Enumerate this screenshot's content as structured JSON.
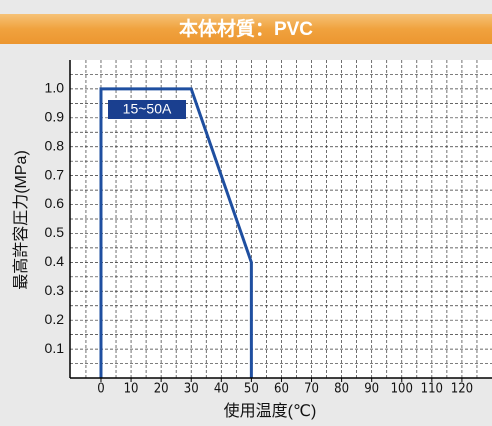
{
  "header": {
    "title": "本体材質：PVC"
  },
  "chart_data": {
    "type": "line",
    "x": [
      0,
      0,
      30,
      50,
      50
    ],
    "series": [
      {
        "name": "15~50A",
        "color": "#1f4fa0",
        "values": [
          0,
          1,
          1,
          0.4,
          0
        ]
      }
    ],
    "xlabel": "使用温度(℃)",
    "ylabel": "最高許容圧力(MPa)",
    "annotation": "15~50A",
    "xlim": [
      -10.3,
      130
    ],
    "ylim": [
      0,
      1.1
    ],
    "xticks": [
      0,
      10,
      20,
      30,
      40,
      50,
      60,
      70,
      80,
      90,
      100,
      110,
      120
    ],
    "yticks": [
      0.1,
      0.2,
      0.3,
      0.4,
      0.5,
      0.6,
      0.7,
      0.8,
      0.9,
      {
        "value": 1,
        "label": "1.0"
      }
    ],
    "grid": true
  }
}
